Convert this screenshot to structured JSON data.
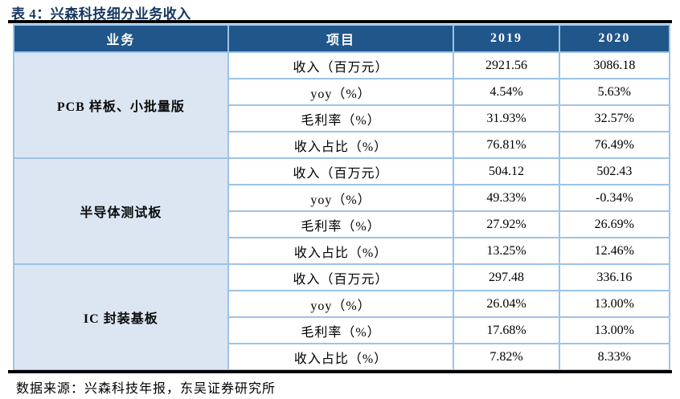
{
  "title": "表 4：兴森科技细分业务收入",
  "source": "数据来源：兴森科技年报，东吴证券研究所",
  "colors": {
    "title_color": "#17375E",
    "header_bg": "#21568A",
    "header_text": "#FFFFFF",
    "group_cell_bg": "#DCE6F2",
    "table_border": "#9DC3E6",
    "rule_color": "#000000"
  },
  "table": {
    "columns": [
      "业务",
      "项目",
      "2019",
      "2020"
    ],
    "groups": [
      {
        "name": "PCB 样板、小批量版",
        "rows": [
          {
            "label": "收入（百万元）",
            "y2019": "2921.56",
            "y2020": "3086.18"
          },
          {
            "label": "yoy（%）",
            "y2019": "4.54%",
            "y2020": "5.63%"
          },
          {
            "label": "毛利率（%）",
            "y2019": "31.93%",
            "y2020": "32.57%"
          },
          {
            "label": "收入占比（%）",
            "y2019": "76.81%",
            "y2020": "76.49%"
          }
        ]
      },
      {
        "name": "半导体测试板",
        "rows": [
          {
            "label": "收入（百万元）",
            "y2019": "504.12",
            "y2020": "502.43"
          },
          {
            "label": "yoy（%）",
            "y2019": "49.33%",
            "y2020": "-0.34%"
          },
          {
            "label": "毛利率（%）",
            "y2019": "27.92%",
            "y2020": "26.69%"
          },
          {
            "label": "收入占比（%）",
            "y2019": "13.25%",
            "y2020": "12.46%"
          }
        ]
      },
      {
        "name": "IC 封装基板",
        "rows": [
          {
            "label": "收入（百万元）",
            "y2019": "297.48",
            "y2020": "336.16"
          },
          {
            "label": "yoy（%）",
            "y2019": "26.04%",
            "y2020": "13.00%"
          },
          {
            "label": "毛利率（%）",
            "y2019": "17.68%",
            "y2020": "13.00%"
          },
          {
            "label": "收入占比（%）",
            "y2019": "7.82%",
            "y2020": "8.33%"
          }
        ]
      }
    ]
  }
}
